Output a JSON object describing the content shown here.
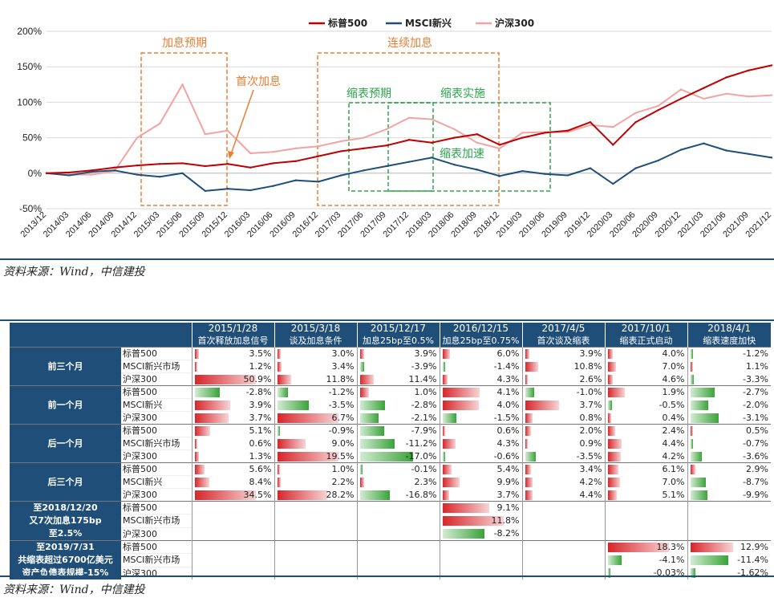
{
  "chart": {
    "legend": [
      {
        "label": "标普500",
        "color": "#c00000"
      },
      {
        "label": "MSCI新兴",
        "color": "#1f4e79"
      },
      {
        "label": "沪深300",
        "color": "#f4a3a3"
      }
    ],
    "y_ticks": [
      "200%",
      "150%",
      "100%",
      "50%",
      "0%",
      "-50%"
    ],
    "x_ticks": [
      "2013/12",
      "2014/03",
      "2014/06",
      "2014/09",
      "2014/12",
      "2015/03",
      "2015/06",
      "2015/09",
      "2015/12",
      "2016/03",
      "2016/06",
      "2016/09",
      "2016/12",
      "2017/03",
      "2017/06",
      "2017/09",
      "2017/12",
      "2018/03",
      "2018/06",
      "2018/09",
      "2018/12",
      "2019/03",
      "2019/06",
      "2019/09",
      "2019/12",
      "2020/03",
      "2020/06",
      "2020/09",
      "2020/12",
      "2021/03",
      "2021/06",
      "2021/09",
      "2021/12"
    ],
    "annotations": {
      "hike_expect": "加息预期",
      "first_hike": "首次加息",
      "continuous_hikes": "连续加息",
      "qt_expect": "缩表预期",
      "qt_implement": "缩表实施",
      "qt_accelerate": "缩表加速"
    },
    "orange_color": "#ed7d31",
    "green_color": "#2ca54c"
  },
  "chart_data": {
    "type": "line",
    "ylim": [
      -50,
      200
    ],
    "x": [
      "2013/12",
      "2014/03",
      "2014/06",
      "2014/09",
      "2014/12",
      "2015/03",
      "2015/06",
      "2015/09",
      "2015/12",
      "2016/03",
      "2016/06",
      "2016/09",
      "2016/12",
      "2017/03",
      "2017/06",
      "2017/09",
      "2017/12",
      "2018/03",
      "2018/06",
      "2018/09",
      "2018/12",
      "2019/03",
      "2019/06",
      "2019/09",
      "2019/12",
      "2020/03",
      "2020/06",
      "2020/09",
      "2020/12",
      "2021/03",
      "2021/06",
      "2021/09",
      "2021/12"
    ],
    "series": [
      {
        "name": "标普500",
        "values": [
          0,
          1,
          4,
          8,
          11,
          13,
          14,
          10,
          13,
          8,
          14,
          17,
          24,
          31,
          35,
          39,
          47,
          43,
          50,
          55,
          40,
          50,
          57,
          60,
          72,
          40,
          72,
          89,
          105,
          120,
          135,
          145,
          152
        ]
      },
      {
        "name": "MSCI新兴",
        "values": [
          0,
          -3,
          2,
          4,
          -2,
          -5,
          0,
          -25,
          -22,
          -24,
          -18,
          -10,
          -12,
          -3,
          4,
          10,
          16,
          22,
          12,
          5,
          -4,
          3,
          -1,
          -3,
          7,
          -15,
          7,
          18,
          33,
          42,
          32,
          27,
          22
        ]
      },
      {
        "name": "沪深300",
        "values": [
          0,
          -2,
          -2,
          3,
          50,
          70,
          125,
          55,
          60,
          28,
          30,
          35,
          38,
          45,
          50,
          62,
          78,
          76,
          62,
          43,
          35,
          57,
          58,
          58,
          68,
          65,
          85,
          95,
          118,
          105,
          112,
          108,
          110
        ]
      }
    ]
  },
  "source_top": "资料来源：Wind，中信建投",
  "source_bottom": "资料来源：Wind，中信建投",
  "table": {
    "columns": [
      {
        "date": "2015/1/28",
        "event": "首次释放加息信号"
      },
      {
        "date": "2015/3/18",
        "event": "谈及加息条件"
      },
      {
        "date": "2015/12/17",
        "event": "加息25bp至0.5%"
      },
      {
        "date": "2016/12/15",
        "event": "加息25bp至0.75%"
      },
      {
        "date": "2017/4/5",
        "event": "首次谈及缩表"
      },
      {
        "date": "2017/10/1",
        "event": "缩表正式启动"
      },
      {
        "date": "2018/4/1",
        "event": "缩表速度加快"
      }
    ],
    "groups": [
      {
        "label": "前三个月",
        "rows": [
          {
            "series": "标普500",
            "cells": [
              {
                "t": "3.5%",
                "v": 3.5
              },
              {
                "t": "3.0%",
                "v": 3.0
              },
              {
                "t": "3.9%",
                "v": 3.9
              },
              {
                "t": "6.0%",
                "v": 6.0
              },
              {
                "t": "3.9%",
                "v": 3.9
              },
              {
                "t": "4.0%",
                "v": 4.0
              },
              {
                "t": "-1.2%",
                "v": -1.2
              }
            ]
          },
          {
            "series": "MSCI新兴市场",
            "cells": [
              {
                "t": "1.2%",
                "v": 1.2
              },
              {
                "t": "3.4%",
                "v": 3.4
              },
              {
                "t": "-3.9%",
                "v": -3.9
              },
              {
                "t": "-1.4%",
                "v": -1.4
              },
              {
                "t": "10.8%",
                "v": 10.8
              },
              {
                "t": "7.0%",
                "v": 7.0
              },
              {
                "t": "1.1%",
                "v": 1.1
              }
            ]
          },
          {
            "series": "沪深300",
            "cells": [
              {
                "t": "50.9%",
                "v": 50.9
              },
              {
                "t": "11.8%",
                "v": 11.8
              },
              {
                "t": "11.4%",
                "v": 11.4
              },
              {
                "t": "4.3%",
                "v": 4.3
              },
              {
                "t": "2.6%",
                "v": 2.6
              },
              {
                "t": "4.6%",
                "v": 4.6
              },
              {
                "t": "-3.3%",
                "v": -3.3
              }
            ]
          }
        ]
      },
      {
        "label": "前一个月",
        "rows": [
          {
            "series": "标普500",
            "cells": [
              {
                "t": "-2.8%",
                "v": -2.8
              },
              {
                "t": "-1.2%",
                "v": -1.2
              },
              {
                "t": "1.0%",
                "v": 1.0
              },
              {
                "t": "4.1%",
                "v": 4.1
              },
              {
                "t": "-1.0%",
                "v": -1.0
              },
              {
                "t": "1.9%",
                "v": 1.9
              },
              {
                "t": "-2.7%",
                "v": -2.7
              }
            ]
          },
          {
            "series": "MSCI新兴",
            "cells": [
              {
                "t": "3.9%",
                "v": 3.9
              },
              {
                "t": "-3.5%",
                "v": -3.5
              },
              {
                "t": "-2.8%",
                "v": -2.8
              },
              {
                "t": "4.0%",
                "v": 4.0
              },
              {
                "t": "3.7%",
                "v": 3.7
              },
              {
                "t": "-0.5%",
                "v": -0.5
              },
              {
                "t": "-2.0%",
                "v": -2.0
              }
            ]
          },
          {
            "series": "沪深300",
            "cells": [
              {
                "t": "3.7%",
                "v": 3.7
              },
              {
                "t": "6.7%",
                "v": 6.7
              },
              {
                "t": "-2.1%",
                "v": -2.1
              },
              {
                "t": "-1.5%",
                "v": -1.5
              },
              {
                "t": "0.8%",
                "v": 0.8
              },
              {
                "t": "0.4%",
                "v": 0.4
              },
              {
                "t": "-3.1%",
                "v": -3.1
              }
            ]
          }
        ]
      },
      {
        "label": "后一个月",
        "rows": [
          {
            "series": "标普500",
            "cells": [
              {
                "t": "5.1%",
                "v": 5.1
              },
              {
                "t": "-0.9%",
                "v": -0.9
              },
              {
                "t": "-7.9%",
                "v": -7.9
              },
              {
                "t": "0.6%",
                "v": 0.6
              },
              {
                "t": "2.0%",
                "v": 2.0
              },
              {
                "t": "2.4%",
                "v": 2.4
              },
              {
                "t": "0.5%",
                "v": 0.5
              }
            ]
          },
          {
            "series": "MSCI新兴市场",
            "cells": [
              {
                "t": "0.6%",
                "v": 0.6
              },
              {
                "t": "9.0%",
                "v": 9.0
              },
              {
                "t": "-11.2%",
                "v": -11.2
              },
              {
                "t": "4.3%",
                "v": 4.3
              },
              {
                "t": "0.9%",
                "v": 0.9
              },
              {
                "t": "4.4%",
                "v": 4.4
              },
              {
                "t": "-0.7%",
                "v": -0.7
              }
            ]
          },
          {
            "series": "沪深300",
            "cells": [
              {
                "t": "1.3%",
                "v": 1.3
              },
              {
                "t": "19.5%",
                "v": 19.5
              },
              {
                "t": "-17.0%",
                "v": -17.0
              },
              {
                "t": "-0.6%",
                "v": -0.6
              },
              {
                "t": "-3.5%",
                "v": -3.5
              },
              {
                "t": "4.2%",
                "v": 4.2
              },
              {
                "t": "-3.6%",
                "v": -3.6
              }
            ]
          }
        ]
      },
      {
        "label": "后三个月",
        "rows": [
          {
            "series": "标普500",
            "cells": [
              {
                "t": "5.6%",
                "v": 5.6
              },
              {
                "t": "1.0%",
                "v": 1.0
              },
              {
                "t": "-0.1%",
                "v": -0.1
              },
              {
                "t": "5.4%",
                "v": 5.4
              },
              {
                "t": "3.4%",
                "v": 3.4
              },
              {
                "t": "6.1%",
                "v": 6.1
              },
              {
                "t": "2.9%",
                "v": 2.9
              }
            ]
          },
          {
            "series": "MSCI新兴",
            "cells": [
              {
                "t": "8.4%",
                "v": 8.4
              },
              {
                "t": "2.2%",
                "v": 2.2
              },
              {
                "t": "2.3%",
                "v": 2.3
              },
              {
                "t": "9.9%",
                "v": 9.9
              },
              {
                "t": "4.2%",
                "v": 4.2
              },
              {
                "t": "7.0%",
                "v": 7.0
              },
              {
                "t": "-8.7%",
                "v": -8.7
              }
            ]
          },
          {
            "series": "沪深300",
            "cells": [
              {
                "t": "34.5%",
                "v": 34.5
              },
              {
                "t": "28.2%",
                "v": 28.2
              },
              {
                "t": "-16.8%",
                "v": -16.8
              },
              {
                "t": "3.7%",
                "v": 3.7
              },
              {
                "t": "4.4%",
                "v": 4.4
              },
              {
                "t": "5.1%",
                "v": 5.1
              },
              {
                "t": "-9.9%",
                "v": -9.9
              }
            ]
          }
        ]
      },
      {
        "label": "至2018/12/20\n又7次加息175bp\n至2.5%",
        "rows": [
          {
            "series": "标普500",
            "cells": [
              null,
              null,
              null,
              {
                "t": "9.1%",
                "v": 9.1
              },
              null,
              null,
              null
            ]
          },
          {
            "series": "MSCI新兴市场",
            "cells": [
              null,
              null,
              null,
              {
                "t": "11.8%",
                "v": 11.8
              },
              null,
              null,
              null
            ]
          },
          {
            "series": "沪深300",
            "cells": [
              null,
              null,
              null,
              {
                "t": "-8.2%",
                "v": -8.2
              },
              null,
              null,
              null
            ]
          }
        ]
      },
      {
        "label": "至2019/7/31\n共缩表超过6700亿美元\n资产负债表规模-15%",
        "rows": [
          {
            "series": "标普500",
            "cells": [
              null,
              null,
              null,
              null,
              null,
              {
                "t": "18.3%",
                "v": 18.3
              },
              {
                "t": "12.9%",
                "v": 12.9
              }
            ]
          },
          {
            "series": "MSCI新兴市场",
            "cells": [
              null,
              null,
              null,
              null,
              null,
              {
                "t": "-4.1%",
                "v": -4.1
              },
              {
                "t": "-11.4%",
                "v": -11.4
              }
            ]
          },
          {
            "series": "沪深300",
            "cells": [
              null,
              null,
              null,
              null,
              null,
              {
                "t": "-0.03%",
                "v": -0.03
              },
              {
                "t": "-1.62%",
                "v": -1.62
              }
            ]
          }
        ]
      }
    ]
  }
}
